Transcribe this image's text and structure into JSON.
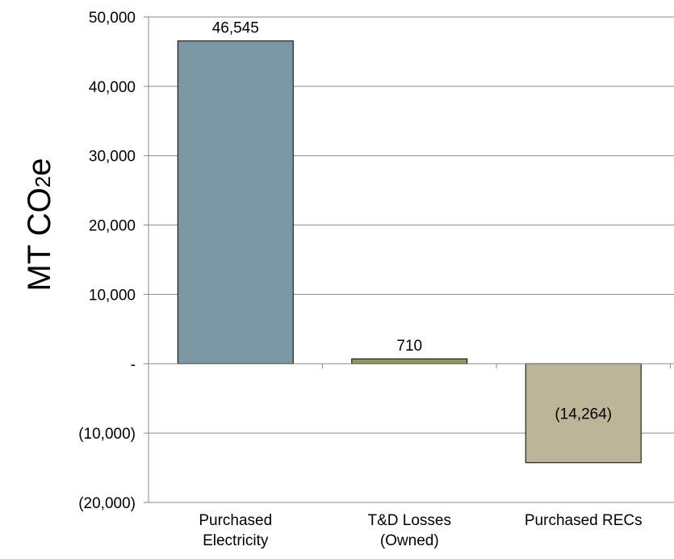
{
  "chart_data": {
    "type": "bar",
    "ylabel": "MT CO2e",
    "ylabel_main": "MT CO",
    "ylabel_sub": "2",
    "ylabel_end": "e",
    "ylim": [
      -20000,
      50000
    ],
    "grid": true,
    "yticks": [
      {
        "value": 50000,
        "label": "50,000"
      },
      {
        "value": 40000,
        "label": "40,000"
      },
      {
        "value": 30000,
        "label": "30,000"
      },
      {
        "value": 20000,
        "label": "20,000"
      },
      {
        "value": 10000,
        "label": "10,000"
      },
      {
        "value": 0,
        "label": "-"
      },
      {
        "value": -10000,
        "label": "(10,000)"
      },
      {
        "value": -20000,
        "label": "(20,000)"
      }
    ],
    "categories": [
      {
        "lines": [
          "Purchased",
          "Electricity"
        ]
      },
      {
        "lines": [
          "T&D Losses",
          "(Owned)"
        ]
      },
      {
        "lines": [
          "Purchased RECs"
        ]
      }
    ],
    "values": [
      46545,
      710,
      -14264
    ],
    "data_labels": [
      "46,545",
      "710",
      "(14,264)"
    ],
    "colors": [
      "#7b97a4",
      "#8c9a5a",
      "#bdb597"
    ]
  }
}
